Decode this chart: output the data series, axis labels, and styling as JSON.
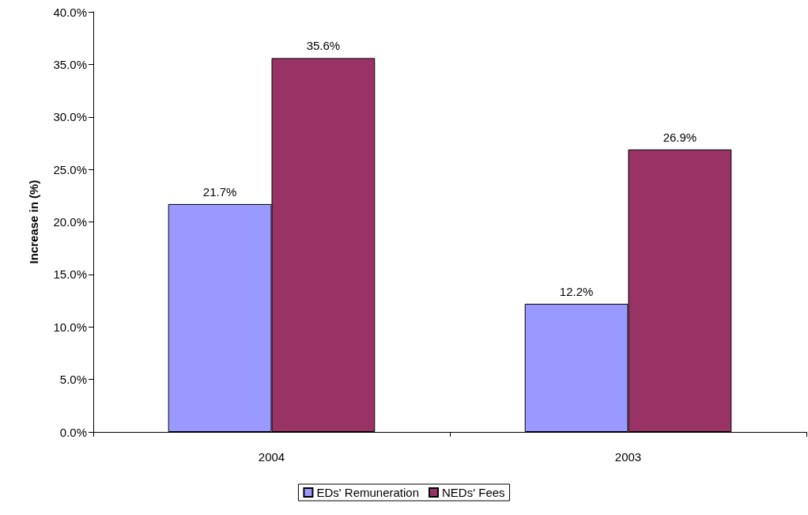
{
  "chart_data": {
    "type": "bar",
    "ylabel": "Increase in (%)",
    "categories": [
      "2004",
      "2003"
    ],
    "series": [
      {
        "name": "EDs' Remuneration",
        "color": "#9999ff",
        "values": [
          21.7,
          12.2
        ],
        "value_labels": [
          "21.7%",
          "12.2%"
        ]
      },
      {
        "name": "NEDs' Fees",
        "color": "#993366",
        "values": [
          35.6,
          26.9
        ],
        "value_labels": [
          "35.6%",
          "26.9%"
        ]
      }
    ],
    "ylim": [
      0,
      40
    ],
    "yticks": [
      {
        "value": 0,
        "label": "0.0%"
      },
      {
        "value": 5,
        "label": "5.0%"
      },
      {
        "value": 10,
        "label": "10.0%"
      },
      {
        "value": 15,
        "label": "15.0%"
      },
      {
        "value": 20,
        "label": "20.0%"
      },
      {
        "value": 25,
        "label": "25.0%"
      },
      {
        "value": 30,
        "label": "30.0%"
      },
      {
        "value": 35,
        "label": "35.0%"
      },
      {
        "value": 40,
        "label": "40.0%"
      }
    ],
    "grid": false,
    "legend": "bottom"
  }
}
